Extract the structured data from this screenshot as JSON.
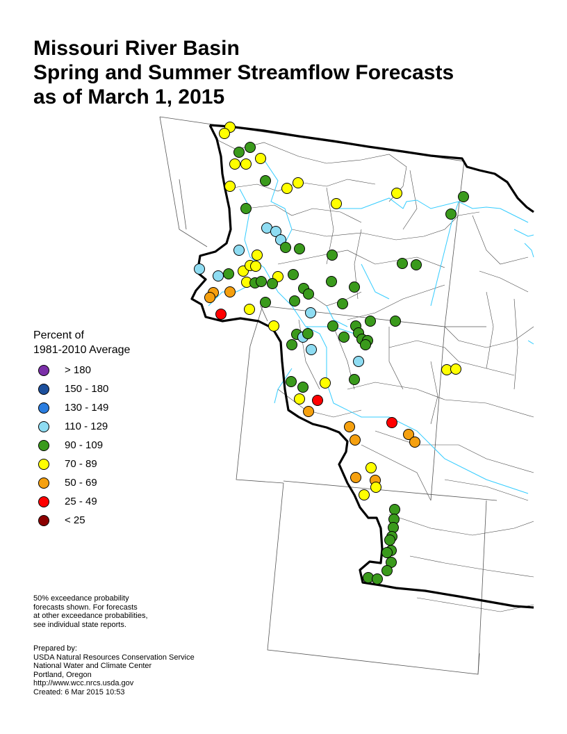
{
  "title_lines": [
    "Missouri River Basin",
    "Spring and Summer Streamflow Forecasts",
    "as of March 1, 2015"
  ],
  "legend": {
    "title_lines": [
      "Percent of",
      "1981-2010 Average"
    ],
    "items": [
      {
        "label": "> 180",
        "color": "#7b2fa8"
      },
      {
        "label": "150 - 180",
        "color": "#1c4f9c"
      },
      {
        "label": "130 - 149",
        "color": "#2a7de0"
      },
      {
        "label": "110 - 129",
        "color": "#8edcf2"
      },
      {
        "label": "90 - 109",
        "color": "#3a9a1c"
      },
      {
        "label": "70 - 89",
        "color": "#ffff00"
      },
      {
        "label": "50 - 69",
        "color": "#f5a00f"
      },
      {
        "label": "25 - 49",
        "color": "#ff0000"
      },
      {
        "label": "< 25",
        "color": "#8b0000"
      }
    ]
  },
  "footnote_lines": [
    "50% exceedance probability",
    "forecasts shown.  For forecasts",
    "at other exceedance probabilities,",
    "see individual state reports."
  ],
  "credits_lines": [
    "Prepared by:",
    "USDA Natural Resources Conservation Service",
    "National Water and Climate Center",
    "Portland, Oregon",
    "http://www.wcc.nrcs.usda.gov",
    "Created:   6 Mar 2015   10:53"
  ],
  "colors": {
    "river": "#33ccff",
    "basin_boundary": "#000000",
    "state_line": "#555555",
    "subbasin_line": "#444444"
  }
}
